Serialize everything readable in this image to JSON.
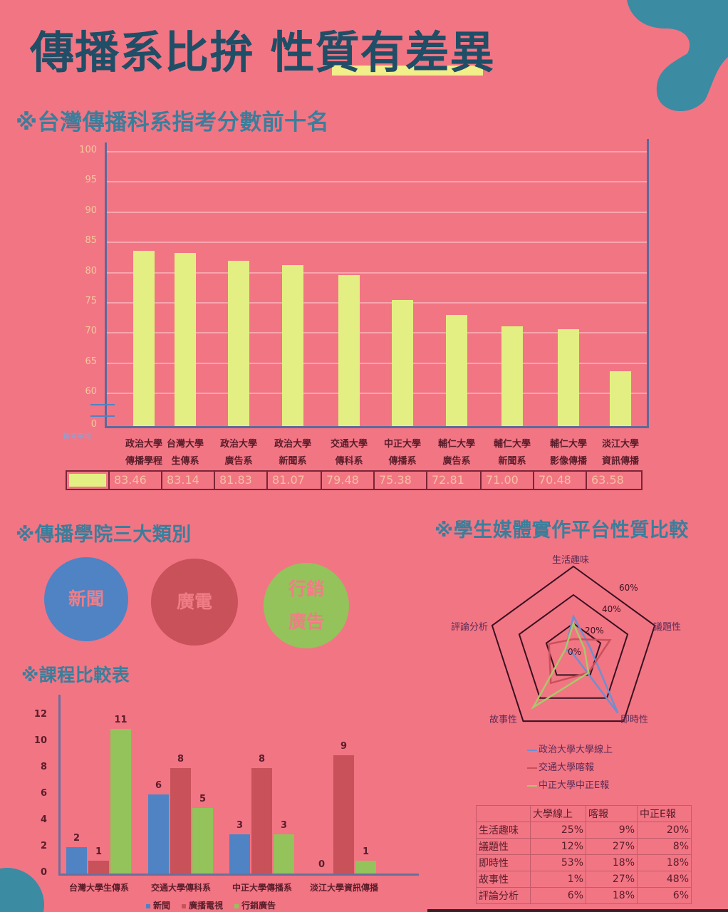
{
  "header": {
    "title_part1": "傳播系比拚",
    "title_part2": "性質",
    "title_part3": "有差異"
  },
  "colors": {
    "background": "#f27584",
    "title": "#1f4e66",
    "section_title": "#3b7e9b",
    "highlight": "#f2ee8a",
    "yellow_bar": "#e3ef82",
    "blue": "#4f83c4",
    "red": "#c9515a",
    "green": "#93c35a",
    "blob": "#3b8ba3"
  },
  "sections": {
    "top_scores": "※台灣傳播科系指考分數前十名",
    "categories": "※傳播學院三大類別",
    "course_compare": "※課程比較表",
    "radar": "※學生媒體實作平台性質比較"
  },
  "circles": [
    {
      "label": "新聞",
      "color": "#4f83c4"
    },
    {
      "label": "廣電",
      "color": "#c9515a"
    },
    {
      "label": "行銷廣告",
      "line1": "行銷",
      "line2": "廣告",
      "color": "#93c35a"
    }
  ],
  "bar_chart_axis_note": "指考平均",
  "chart_data": [
    {
      "type": "bar",
      "title": "※台灣傳播科系指考分數前十名",
      "categories": [
        "政治大學 傳播學程",
        "台灣大學 生傳系",
        "政治大學 廣告系",
        "政治大學 新聞系",
        "交通大學 傳科系",
        "中正大學 傳播系",
        "輔仁大學 廣告系",
        "輔仁大學 新聞系",
        "輔仁大學 影像傳播",
        "淡江大學 資訊傳播"
      ],
      "category_lines": [
        [
          "政治大學",
          "傳播學程"
        ],
        [
          "台灣大學",
          "生傳系"
        ],
        [
          "政治大學",
          "廣告系"
        ],
        [
          "政治大學",
          "新聞系"
        ],
        [
          "交通大學",
          "傳科系"
        ],
        [
          "中正大學",
          "傳播系"
        ],
        [
          "輔仁大學",
          "廣告系"
        ],
        [
          "輔仁大學",
          "新聞系"
        ],
        [
          "輔仁大學",
          "影像傳播"
        ],
        [
          "淡江大學",
          "資訊傳播"
        ]
      ],
      "values": [
        83.46,
        83.14,
        81.83,
        81.07,
        79.48,
        75.38,
        72.81,
        71.0,
        70.48,
        63.58
      ],
      "value_labels": [
        "83.46",
        "83.14",
        "81.83",
        "81.07",
        "79.48",
        "75.38",
        "72.81",
        "71.00",
        "70.48",
        "63.58"
      ],
      "yticks": [
        "100",
        "95",
        "90",
        "85",
        "80",
        "75",
        "70",
        "65",
        "60",
        "0"
      ],
      "ylim": [
        55,
        100
      ],
      "axis_break": true,
      "grid": true,
      "legend": "指考平均"
    },
    {
      "type": "bar",
      "title": "※課程比較表",
      "categories": [
        "台灣大學生傳系",
        "交通大學傳科系",
        "中正大學傳播系",
        "淡江大學資訊傳播"
      ],
      "series": [
        {
          "name": "新聞",
          "color": "#4f83c4",
          "values": [
            2,
            6,
            3,
            0
          ]
        },
        {
          "name": "廣播電視",
          "color": "#c9515a",
          "values": [
            1,
            8,
            8,
            9
          ]
        },
        {
          "name": "行銷廣告",
          "color": "#93c35a",
          "values": [
            11,
            5,
            3,
            1
          ]
        }
      ],
      "yticks": [
        "12",
        "10",
        "8",
        "6",
        "4",
        "2",
        "0"
      ],
      "ylim": [
        0,
        12
      ],
      "legend_position": "bottom"
    },
    {
      "type": "radar",
      "title": "※學生媒體實作平台性質比較",
      "axes": [
        "生活趣味",
        "議題性",
        "即時性",
        "故事性",
        "評論分析"
      ],
      "rticks": [
        "0%",
        "20%",
        "40%",
        "60%"
      ],
      "series": [
        {
          "name": "政治大學大學線上",
          "short": "大學線上",
          "color": "#6f8fd0",
          "values": [
            25,
            12,
            53,
            1,
            6
          ]
        },
        {
          "name": "交通大學喀報",
          "short": "喀報",
          "color": "#c9515a",
          "values": [
            9,
            27,
            18,
            27,
            18
          ]
        },
        {
          "name": "中正大學中正E報",
          "short": "中正E報",
          "color": "#a9c86a",
          "values": [
            20,
            8,
            18,
            48,
            6
          ]
        }
      ]
    }
  ],
  "radar_table": {
    "headers": [
      "",
      "大學線上",
      "喀報",
      "中正E報"
    ],
    "rows": [
      [
        "生活趣味",
        "25%",
        "9%",
        "20%"
      ],
      [
        "議題性",
        "12%",
        "27%",
        "8%"
      ],
      [
        "即時性",
        "53%",
        "18%",
        "18%"
      ],
      [
        "故事性",
        "1%",
        "27%",
        "48%"
      ],
      [
        "評論分析",
        "6%",
        "18%",
        "6%"
      ]
    ]
  }
}
